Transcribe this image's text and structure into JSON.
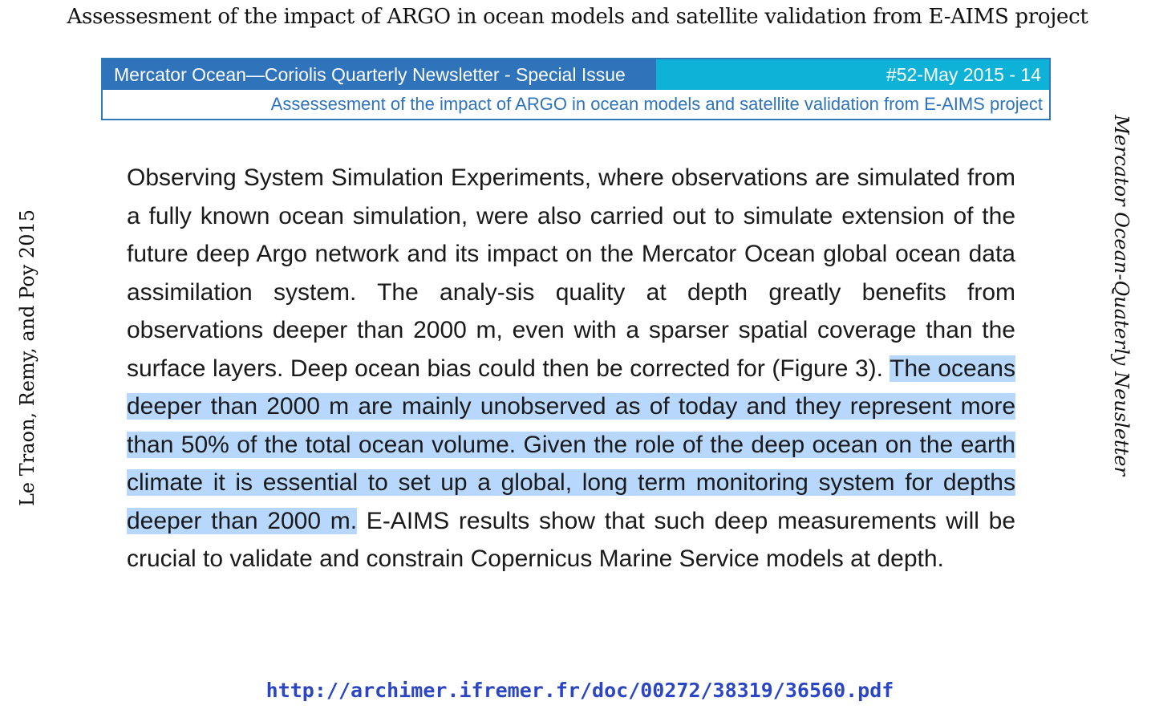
{
  "title": "Assessesment of the impact of ARGO in ocean models and satellite validation from E-AIMS project",
  "left_caption": "Le Traon,  Remy, and Poy 2015",
  "right_caption": "Mercator Ocean-Quaterly Neusletter",
  "banner": {
    "newsletter": "Mercator Ocean—Coriolis Quarterly Newsletter - Special Issue",
    "issue": "#52-May 2015 - 14",
    "subtitle": "Assessesment of the impact of ARGO in ocean models and satellite validation from E-AIMS project"
  },
  "body": {
    "before": "Observing System Simulation Experiments, where observations are simulated from a fully known ocean simulation, were also carried out to simulate extension of the future deep Argo network and its impact on the Mercator Ocean global ocean data assimilation system. The analy-sis quality at depth greatly benefits from observations deeper than 2000 m, even with a sparser spatial coverage than the surface layers. Deep ocean bias could then be corrected for (Figure 3). ",
    "highlight": "The oceans deeper than 2000 m are mainly unobserved as of today and they represent more than 50% of the total ocean volume. Given the role of the deep ocean on the earth climate it is essential to set up a global, long term monitoring system for depths deeper than 2000 m.",
    "after": " E-AIMS results show that such deep measurements will be crucial to validate and constrain Copernicus Marine Service models at depth."
  },
  "source_url": "http://archimer.ifremer.fr/doc/00272/38319/36560.pdf",
  "colors": {
    "banner_left": "#2f74bb",
    "banner_right": "#0eb2d6",
    "highlight": "#b7d7fc",
    "link": "#2b46c4"
  }
}
